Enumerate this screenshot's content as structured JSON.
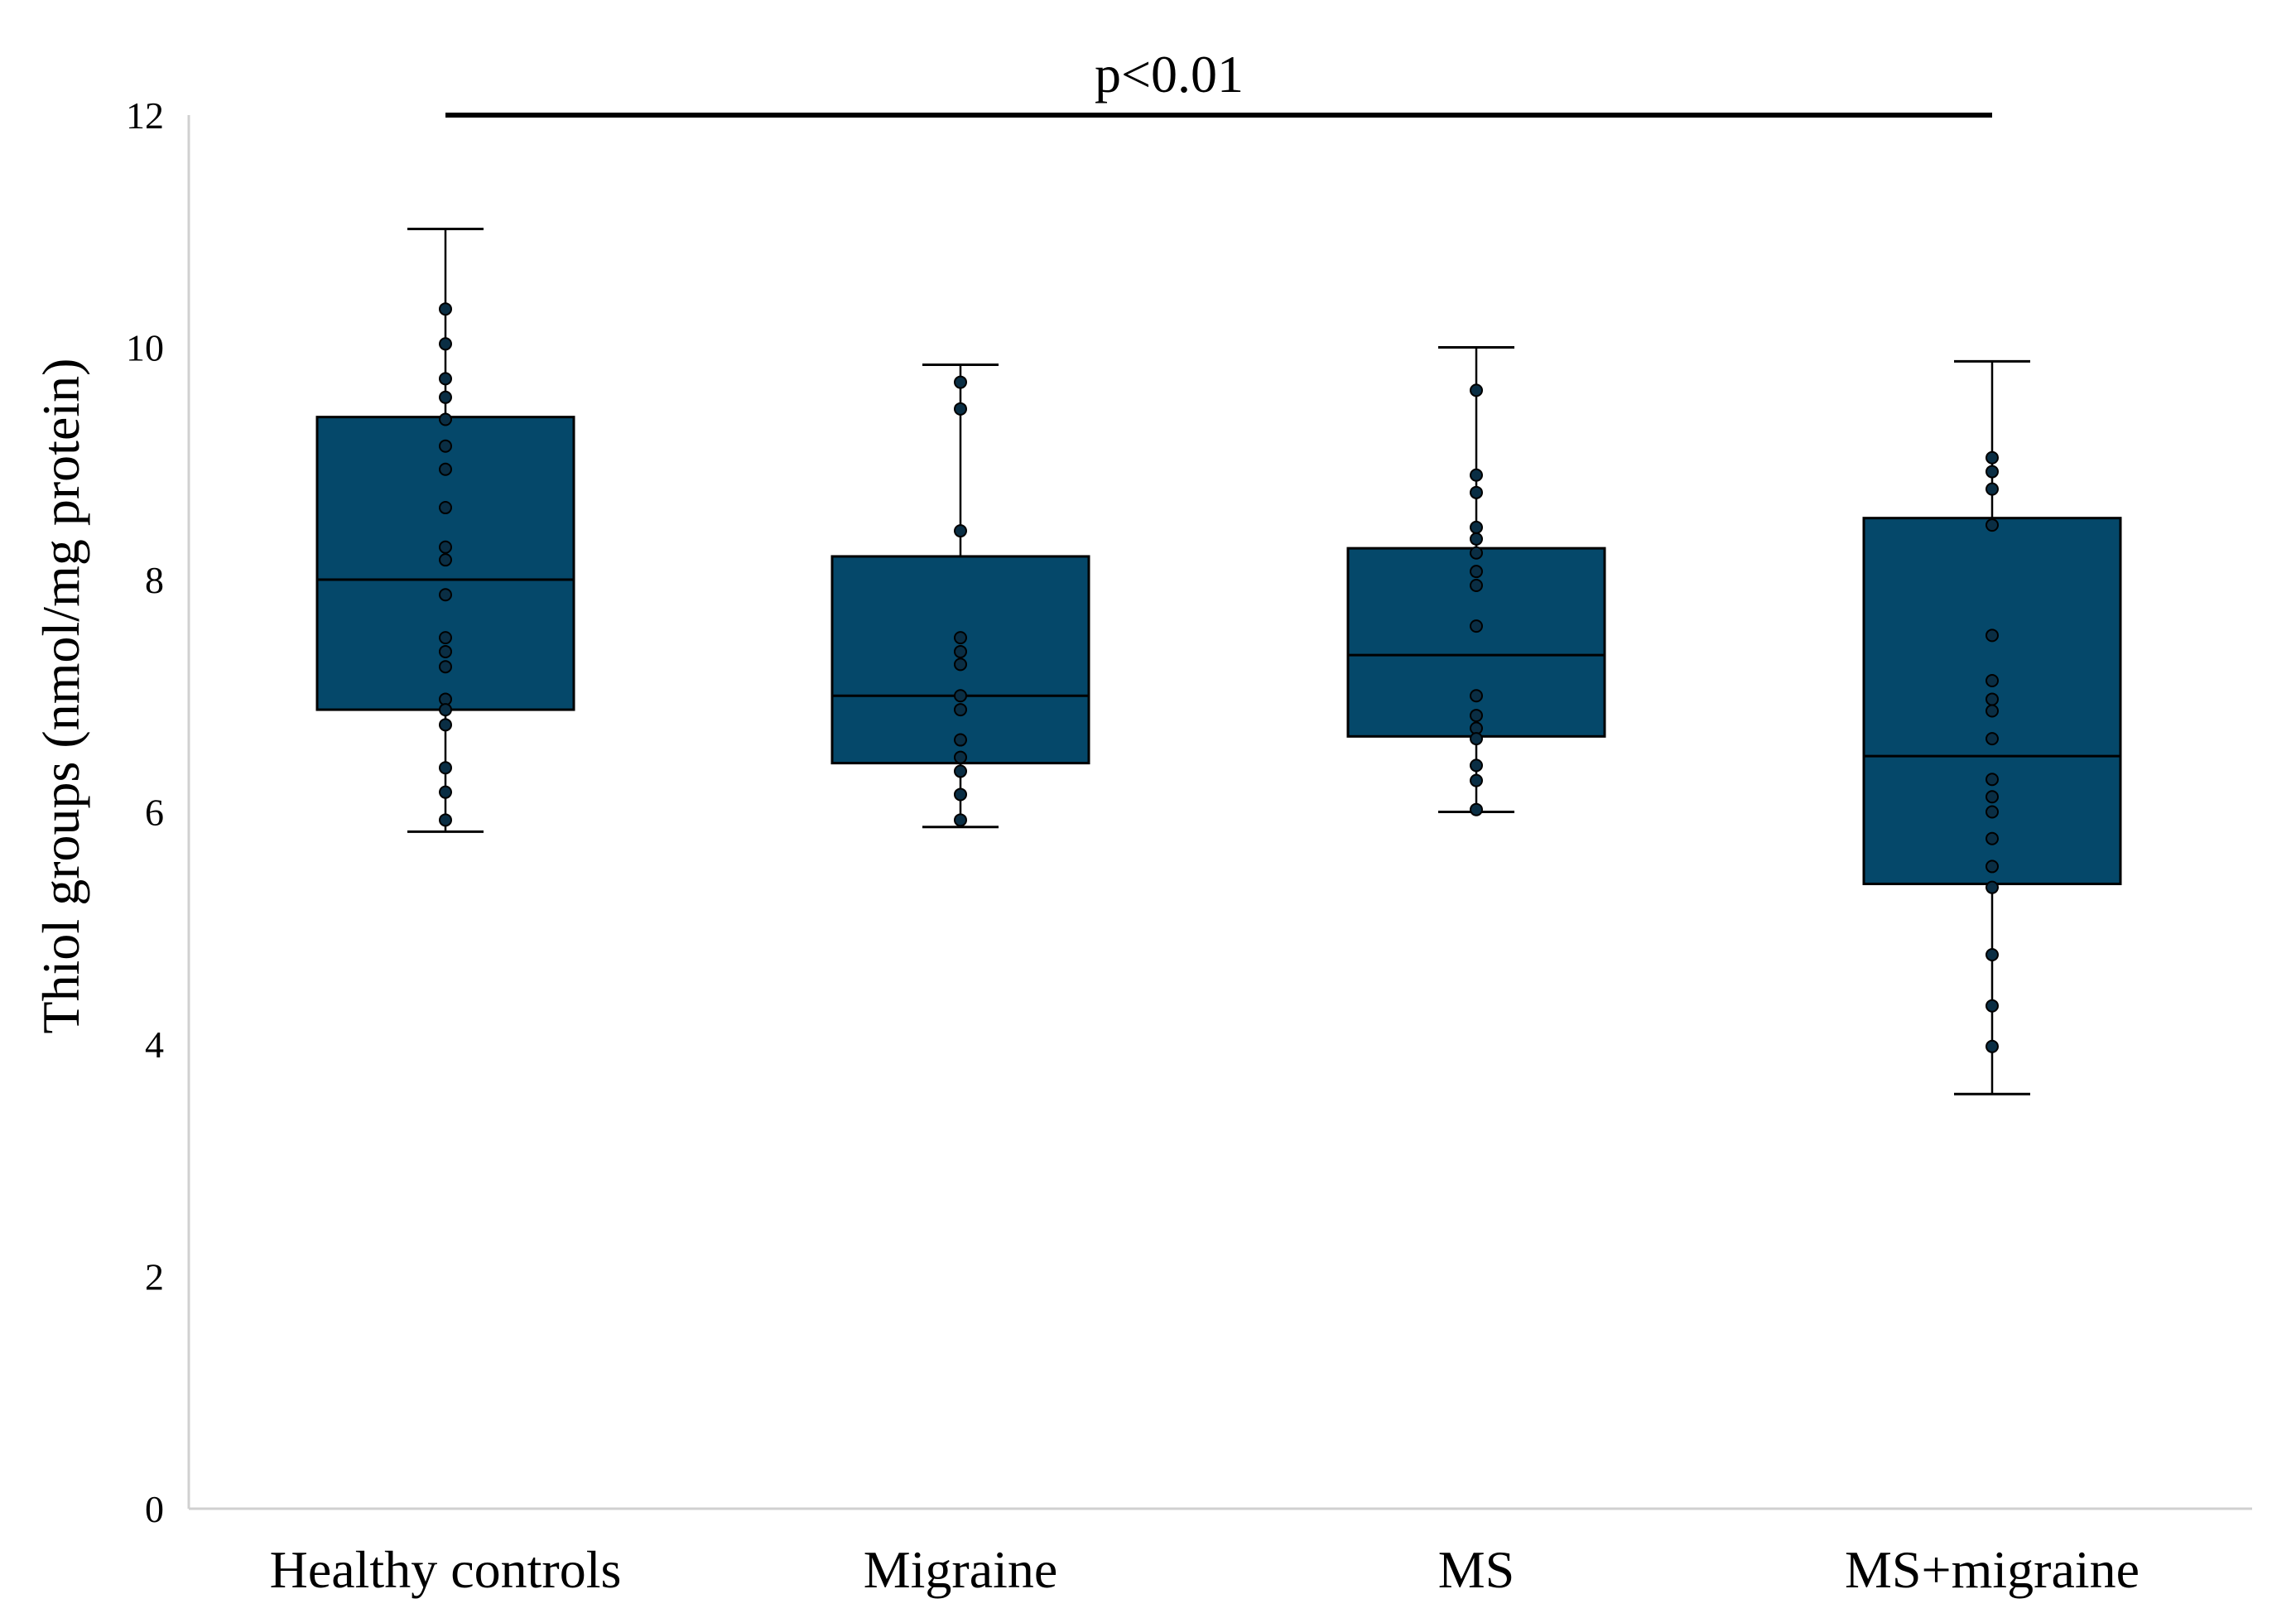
{
  "chart_data": {
    "type": "box",
    "ylabel": "Thiol groups (nmol/mg protein)",
    "xlabel": "",
    "ylim": [
      0,
      12
    ],
    "yticks": [
      0,
      2,
      4,
      6,
      8,
      10,
      12
    ],
    "grid": false,
    "legend": "none",
    "box_color": "#05486A",
    "point_color": "#0A2E44",
    "categories": [
      "Healthy controls",
      "Migraine",
      "MS",
      "MS+migraine"
    ],
    "boxes": [
      {
        "name": "Healthy controls",
        "min": 5.83,
        "q1": 6.88,
        "median": 8.0,
        "q3": 9.4,
        "max": 11.02,
        "points": [
          10.33,
          10.03,
          9.73,
          9.57,
          9.38,
          9.15,
          8.95,
          8.62,
          8.28,
          8.17,
          7.87,
          7.5,
          7.38,
          7.25,
          6.97,
          6.88,
          6.75,
          6.38,
          6.17,
          5.93
        ]
      },
      {
        "name": "Migraine",
        "min": 5.87,
        "q1": 6.42,
        "median": 7.0,
        "q3": 8.2,
        "max": 9.85,
        "points": [
          9.7,
          9.47,
          8.42,
          7.5,
          7.38,
          7.27,
          7.0,
          6.88,
          6.62,
          6.47,
          6.35,
          6.15,
          5.93
        ]
      },
      {
        "name": "MS",
        "min": 6.0,
        "q1": 6.65,
        "median": 7.35,
        "q3": 8.27,
        "max": 10.0,
        "points": [
          9.63,
          8.9,
          8.75,
          8.45,
          8.35,
          8.23,
          8.07,
          7.95,
          7.6,
          7.0,
          6.83,
          6.72,
          6.63,
          6.4,
          6.27,
          6.02
        ]
      },
      {
        "name": "MS+migraine",
        "min": 3.57,
        "q1": 5.38,
        "median": 6.48,
        "q3": 8.53,
        "max": 9.88,
        "points": [
          9.05,
          8.93,
          8.78,
          8.47,
          7.52,
          7.13,
          6.97,
          6.87,
          6.63,
          6.28,
          6.13,
          6.0,
          5.77,
          5.53,
          5.35,
          4.77,
          4.33,
          3.98
        ]
      }
    ],
    "annotation": {
      "text": "p<0.01",
      "y": 12,
      "from_category": "Healthy controls",
      "to_category": "MS+migraine"
    }
  }
}
